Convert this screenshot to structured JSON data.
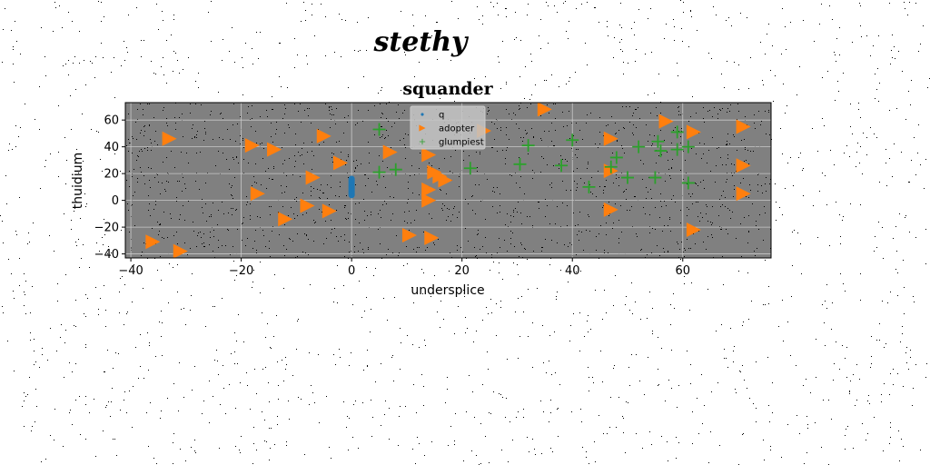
{
  "page": {
    "title": "stethy",
    "background": "#ffffff",
    "noise_color": "#000000"
  },
  "chart_data": {
    "type": "scatter",
    "title": "squander",
    "xlabel": "undersplice",
    "ylabel": "thuidium",
    "xlim": [
      -41,
      76
    ],
    "ylim": [
      -43,
      73
    ],
    "xticks": [
      -40,
      -20,
      0,
      20,
      40,
      60
    ],
    "yticks": [
      -40,
      -20,
      0,
      20,
      40,
      60
    ],
    "grid": true,
    "plot_background": "#808080",
    "grid_color": "#c8c8c8",
    "legend_position": "top-center",
    "series": [
      {
        "name": "q",
        "marker": "circle",
        "color": "#1f77b4",
        "x": [
          0,
          0,
          0,
          0,
          0,
          0,
          0,
          0,
          0,
          0,
          0,
          0,
          0
        ],
        "y": [
          4,
          5,
          6,
          7,
          8,
          9,
          10,
          11,
          12,
          13,
          14,
          15,
          16
        ]
      },
      {
        "name": "adopter",
        "marker": "triangle-right",
        "color": "#ff7f0e",
        "x": [
          -36,
          -33,
          -31,
          -18,
          -17,
          -14,
          -12,
          -8,
          -7,
          -5,
          -4,
          -2,
          7,
          10.5,
          14,
          14,
          14,
          14.5,
          15,
          16,
          17,
          24,
          35,
          47,
          47,
          47,
          57,
          62,
          62,
          71,
          71,
          71
        ],
        "y": [
          -31,
          46,
          -38,
          41,
          5,
          38,
          -14,
          -4,
          17,
          48,
          -8,
          28,
          36,
          -26,
          34,
          8,
          0,
          -28,
          21,
          18,
          15,
          52,
          68,
          46,
          22,
          -7,
          59,
          51,
          -22,
          55,
          26,
          5
        ]
      },
      {
        "name": "glumpiest",
        "marker": "plus",
        "color": "#2ca02c",
        "x": [
          5,
          5,
          8,
          21.5,
          30.5,
          32,
          38,
          40,
          43,
          47,
          48,
          50,
          52,
          55,
          55.5,
          56,
          59,
          59,
          61,
          61
        ],
        "y": [
          53,
          21,
          23,
          24,
          27,
          41,
          26,
          45,
          10,
          25,
          32,
          17,
          40,
          17,
          44,
          37,
          51,
          38,
          40,
          13
        ]
      }
    ]
  }
}
